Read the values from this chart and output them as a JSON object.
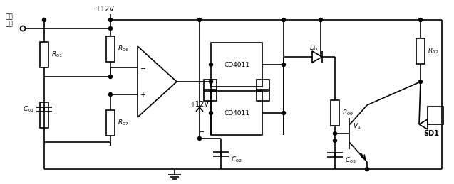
{
  "background_color": "#ffffff",
  "line_color": "#000000",
  "lw": 1.2,
  "fig_width": 6.37,
  "fig_height": 2.59,
  "dpi": 100,
  "labels": {
    "out1": "输出",
    "out2": "采样",
    "plus12v_1": "+12V",
    "plus12v_2": "+12V",
    "R01": "$R_{01}$",
    "R06": "$R_{06}$",
    "R07": "$R_{07}$",
    "R09": "$R_{09}$",
    "R12": "$R_{12}$",
    "C01": "$C_{01}$",
    "C02": "$C_{02}$",
    "C03": "$C_{03}$",
    "D0": "$D_0$",
    "V1": "$V_1$",
    "SD1": "SD1",
    "CD4011": "CD4011"
  }
}
